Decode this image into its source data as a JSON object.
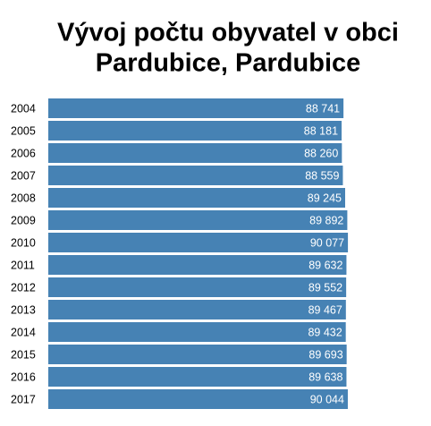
{
  "chart_data": {
    "type": "barh",
    "title": [
      "Vývoj počtu obyvatel v obci",
      "Pardubice, Pardubice"
    ],
    "categories": [
      "2004",
      "2005",
      "2006",
      "2007",
      "2008",
      "2009",
      "2010",
      "2011",
      "2012",
      "2013",
      "2014",
      "2015",
      "2016",
      "2017"
    ],
    "values": [
      88741,
      88181,
      88260,
      88559,
      89245,
      89892,
      90077,
      89632,
      89552,
      89467,
      89432,
      89693,
      89638,
      90044
    ],
    "value_labels": [
      "88 741",
      "88 181",
      "88 260",
      "88 559",
      "89 245",
      "89 892",
      "90 077",
      "89 632",
      "89 552",
      "89 467",
      "89 432",
      "89 693",
      "89 638",
      "90 044"
    ],
    "color": "#4682b4",
    "xlim": [
      0,
      100000
    ]
  }
}
